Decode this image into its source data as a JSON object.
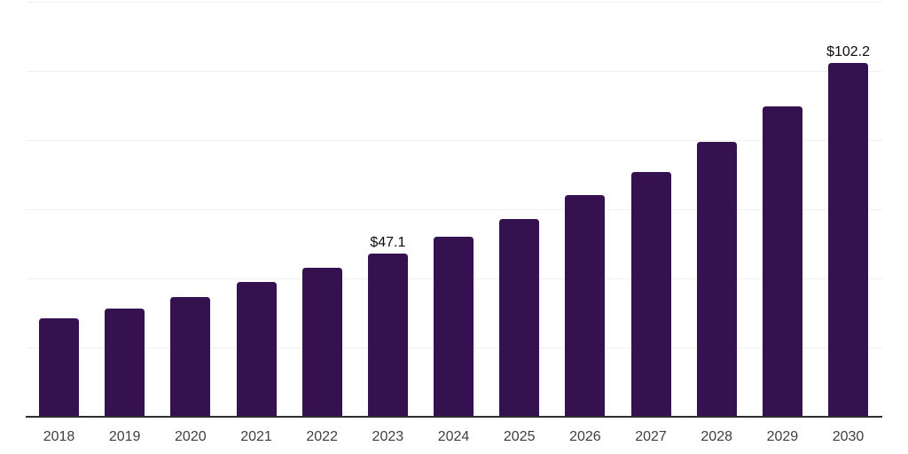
{
  "chart_data": {
    "type": "bar",
    "title": "",
    "xlabel": "",
    "ylabel": "",
    "categories": [
      "2018",
      "2019",
      "2020",
      "2021",
      "2022",
      "2023",
      "2024",
      "2025",
      "2026",
      "2027",
      "2028",
      "2029",
      "2030"
    ],
    "values": [
      28.5,
      31.2,
      34.5,
      38.9,
      43.1,
      47.1,
      52.0,
      57.1,
      64.0,
      70.8,
      79.4,
      89.8,
      102.2
    ],
    "annotations": [
      {
        "category": "2023",
        "text": "$47.1"
      },
      {
        "category": "2030",
        "text": "$102.2"
      }
    ],
    "ylim": [
      0,
      120
    ],
    "gridline_interval": 20,
    "grid": "horizontal",
    "legend_position": "none",
    "colors": {
      "bar": "#351150",
      "gridline": "#f0f0f0",
      "axis_line": "#2e2e2e",
      "tick_label": "#3f3f3f",
      "annotation": "#0d0d0d",
      "background": "#ffffff"
    }
  }
}
